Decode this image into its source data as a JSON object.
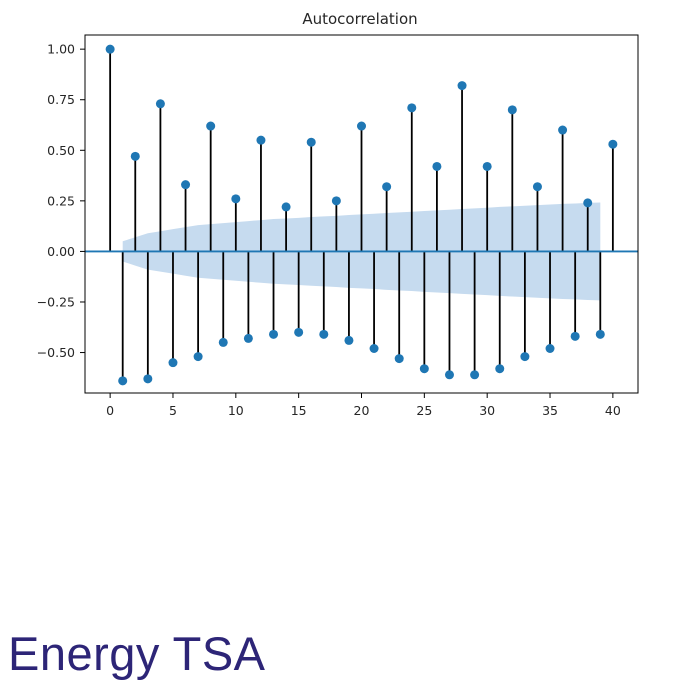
{
  "brand": {
    "text": "Energy TSA",
    "color": "#2d2577"
  },
  "chart_data": {
    "type": "stem",
    "title": "Autocorrelation",
    "xlabel": "",
    "ylabel": "",
    "xlim": [
      -2,
      42
    ],
    "ylim": [
      -0.7,
      1.07
    ],
    "x_ticks": [
      0,
      5,
      10,
      15,
      20,
      25,
      30,
      35,
      40
    ],
    "x_tick_labels": [
      "0",
      "5",
      "10",
      "15",
      "20",
      "25",
      "30",
      "35",
      "40"
    ],
    "y_ticks": [
      1.0,
      0.75,
      0.5,
      0.25,
      0.0,
      -0.25,
      -0.5
    ],
    "y_tick_labels": [
      "1.00",
      "0.75",
      "0.50",
      "0.25",
      "0.00",
      "−0.25",
      "−0.50"
    ],
    "grid": false,
    "lags": [
      0,
      1,
      2,
      3,
      4,
      5,
      6,
      7,
      8,
      9,
      10,
      11,
      12,
      13,
      14,
      15,
      16,
      17,
      18,
      19,
      20,
      21,
      22,
      23,
      24,
      25,
      26,
      27,
      28,
      29,
      30,
      31,
      32,
      33,
      34,
      35,
      36,
      37,
      38,
      39,
      40
    ],
    "values": [
      1.0,
      -0.64,
      0.47,
      -0.63,
      0.73,
      -0.55,
      0.33,
      -0.52,
      0.62,
      -0.45,
      0.26,
      -0.43,
      0.55,
      -0.41,
      0.22,
      -0.4,
      0.54,
      -0.41,
      0.25,
      -0.44,
      0.62,
      -0.48,
      0.32,
      -0.53,
      0.71,
      -0.58,
      0.42,
      -0.61,
      0.82,
      -0.61,
      0.42,
      -0.58,
      0.7,
      -0.52,
      0.32,
      -0.48,
      0.6,
      -0.42,
      0.24,
      -0.41,
      0.53
    ],
    "confidence_band": {
      "lags": [
        1,
        2,
        3,
        4,
        5,
        6,
        7,
        8,
        9,
        10,
        11,
        12,
        13,
        14,
        15,
        16,
        17,
        18,
        19,
        20,
        21,
        22,
        23,
        24,
        25,
        26,
        27,
        28,
        29,
        30,
        31,
        32,
        33,
        34,
        35,
        36,
        37,
        38,
        39
      ],
      "upper": [
        0.05,
        0.07,
        0.09,
        0.1,
        0.11,
        0.12,
        0.13,
        0.135,
        0.14,
        0.145,
        0.15,
        0.155,
        0.16,
        0.163,
        0.166,
        0.17,
        0.173,
        0.176,
        0.18,
        0.183,
        0.186,
        0.19,
        0.193,
        0.196,
        0.2,
        0.203,
        0.206,
        0.21,
        0.213,
        0.216,
        0.22,
        0.223,
        0.226,
        0.229,
        0.232,
        0.235,
        0.237,
        0.24,
        0.242
      ],
      "color": "#c6dbef"
    },
    "colors": {
      "marker": "#1f77b4",
      "stem": "#000000",
      "zero_line": "#1f77b4",
      "band": "#c6dbef"
    }
  }
}
